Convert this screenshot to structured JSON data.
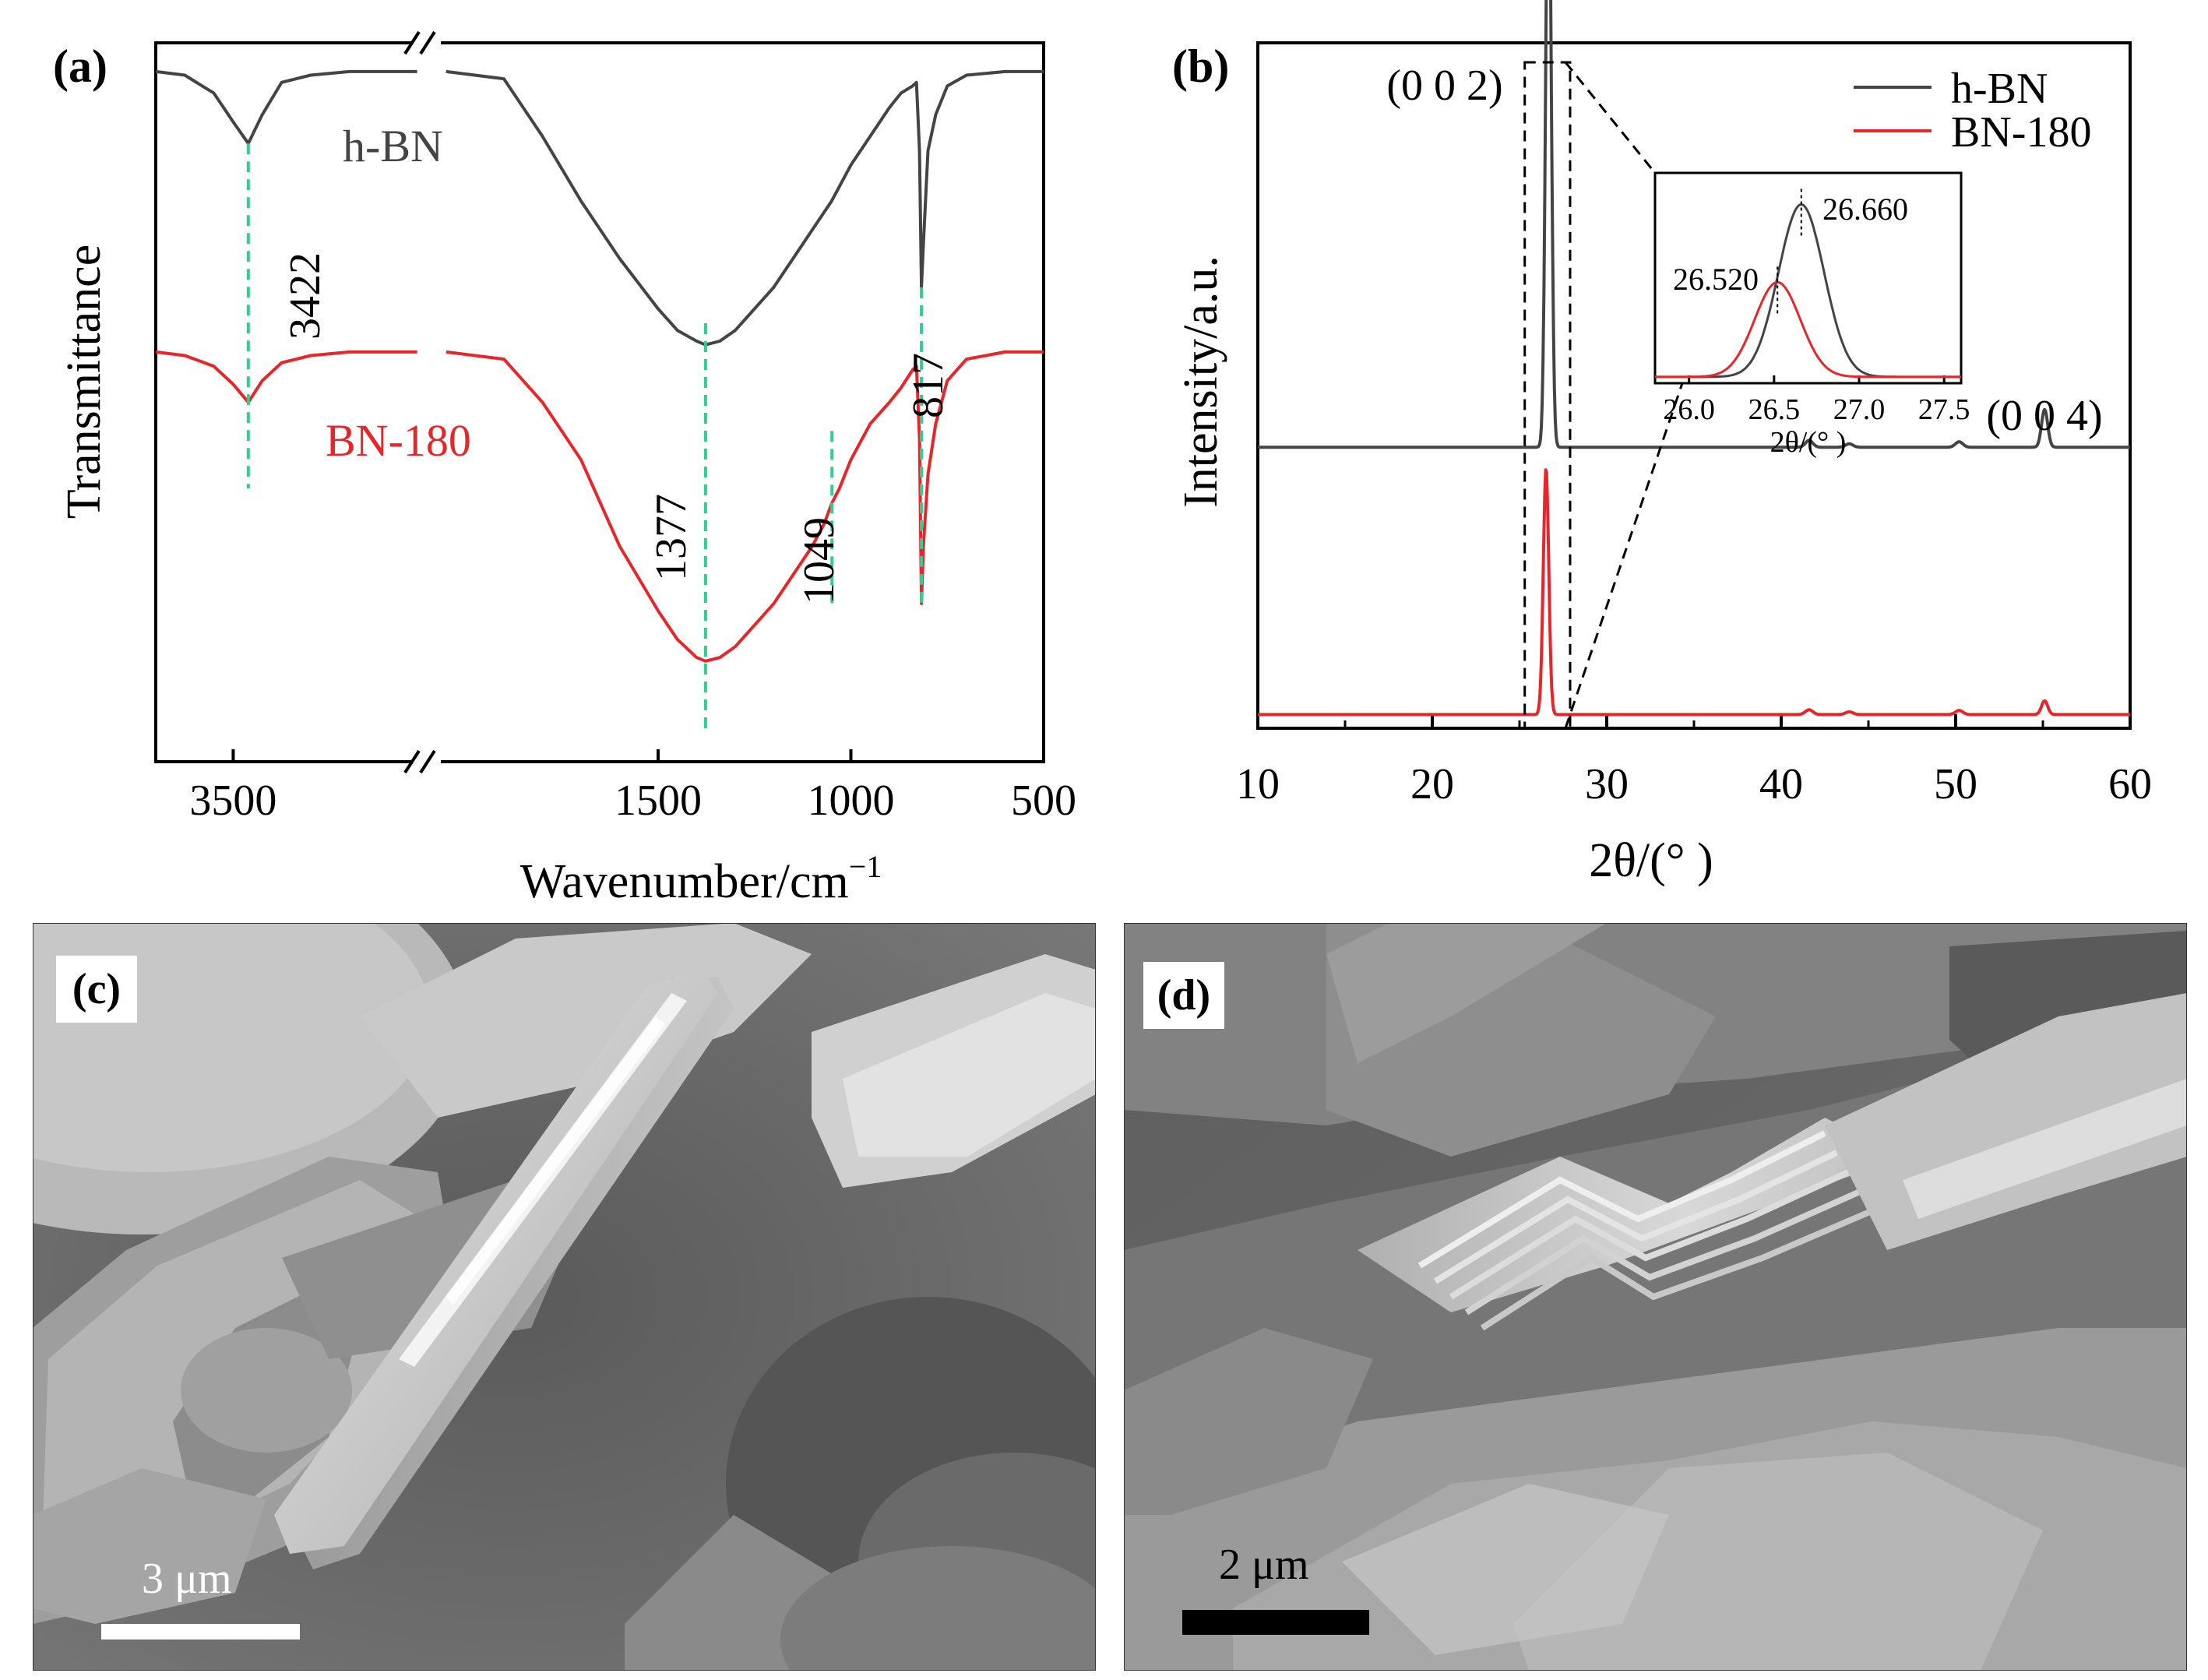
{
  "panels": {
    "a": {
      "label": "(a)",
      "xlabel": "Wavenumber/cm",
      "xlabel_sup": "−1",
      "ylabel": "Transmittance",
      "colors": {
        "h_bn": "#444444",
        "bn_180": "#e8262a",
        "guide": "#2ecf8f"
      }
    },
    "b": {
      "label": "(b)",
      "xlabel": "2θ/(°  )",
      "ylabel": "Intensity/a.u.",
      "peak_labels": [
        "(0 0 2)",
        "(0 0 4)"
      ],
      "inset": {
        "xlabel": "2θ/(°  )",
        "peak_labels": [
          "26.660",
          "26.520"
        ]
      },
      "colors": {
        "h_bn": "#444444",
        "bn_180": "#e8262a"
      }
    },
    "c": {
      "label": "(c)",
      "scale_label": "3 μm"
    },
    "d": {
      "label": "(d)",
      "scale_label": "2 μm"
    }
  },
  "chart_data": [
    {
      "panel": "a",
      "type": "line",
      "xlabel": "Wavenumber/cm−1",
      "ylabel": "Transmittance",
      "x_axis": {
        "reversed": true,
        "broken": true,
        "segments": [
          {
            "range": [
              3900,
              2500
            ],
            "ticks": [
              3500
            ]
          },
          {
            "range": [
              2100,
              500
            ],
            "ticks": [
              1500,
              1000,
              500
            ]
          }
        ]
      },
      "series": [
        {
          "name": "h-BN",
          "points": [
            [
              3900,
              0.96
            ],
            [
              3750,
              0.955
            ],
            [
              3600,
              0.93
            ],
            [
              3500,
              0.89
            ],
            [
              3422,
              0.86
            ],
            [
              3350,
              0.9
            ],
            [
              3250,
              0.945
            ],
            [
              3100,
              0.955
            ],
            [
              2900,
              0.96
            ],
            [
              2700,
              0.96
            ],
            [
              2550,
              0.96
            ],
            [
              2050,
              0.96
            ],
            [
              1900,
              0.95
            ],
            [
              1800,
              0.87
            ],
            [
              1700,
              0.78
            ],
            [
              1600,
              0.7
            ],
            [
              1500,
              0.63
            ],
            [
              1450,
              0.6
            ],
            [
              1400,
              0.585
            ],
            [
              1377,
              0.58
            ],
            [
              1340,
              0.585
            ],
            [
              1300,
              0.6
            ],
            [
              1250,
              0.63
            ],
            [
              1200,
              0.66
            ],
            [
              1150,
              0.7
            ],
            [
              1100,
              0.74
            ],
            [
              1050,
              0.78
            ],
            [
              1000,
              0.83
            ],
            [
              950,
              0.87
            ],
            [
              900,
              0.91
            ],
            [
              870,
              0.93
            ],
            [
              840,
              0.94
            ],
            [
              830,
              0.945
            ],
            [
              822,
              0.85
            ],
            [
              817,
              0.66
            ],
            [
              812,
              0.72
            ],
            [
              800,
              0.85
            ],
            [
              780,
              0.9
            ],
            [
              750,
              0.94
            ],
            [
              700,
              0.955
            ],
            [
              600,
              0.96
            ],
            [
              500,
              0.96
            ]
          ]
        },
        {
          "name": "BN-180",
          "points": [
            [
              3900,
              0.57
            ],
            [
              3750,
              0.565
            ],
            [
              3600,
              0.55
            ],
            [
              3500,
              0.525
            ],
            [
              3422,
              0.5
            ],
            [
              3350,
              0.53
            ],
            [
              3250,
              0.555
            ],
            [
              3100,
              0.565
            ],
            [
              2900,
              0.57
            ],
            [
              2700,
              0.57
            ],
            [
              2550,
              0.57
            ],
            [
              2050,
              0.57
            ],
            [
              1900,
              0.56
            ],
            [
              1800,
              0.5
            ],
            [
              1700,
              0.42
            ],
            [
              1600,
              0.3
            ],
            [
              1500,
              0.21
            ],
            [
              1450,
              0.17
            ],
            [
              1400,
              0.145
            ],
            [
              1377,
              0.14
            ],
            [
              1340,
              0.145
            ],
            [
              1300,
              0.16
            ],
            [
              1250,
              0.19
            ],
            [
              1200,
              0.22
            ],
            [
              1150,
              0.26
            ],
            [
              1100,
              0.3
            ],
            [
              1070,
              0.33
            ],
            [
              1049,
              0.36
            ],
            [
              1030,
              0.38
            ],
            [
              1000,
              0.42
            ],
            [
              950,
              0.47
            ],
            [
              900,
              0.5
            ],
            [
              870,
              0.52
            ],
            [
              840,
              0.545
            ],
            [
              830,
              0.55
            ],
            [
              822,
              0.45
            ],
            [
              817,
              0.22
            ],
            [
              812,
              0.3
            ],
            [
              800,
              0.4
            ],
            [
              780,
              0.47
            ],
            [
              750,
              0.53
            ],
            [
              700,
              0.56
            ],
            [
              600,
              0.57
            ],
            [
              500,
              0.57
            ]
          ]
        }
      ],
      "annotations": [
        {
          "x": 3422,
          "text": "3422"
        },
        {
          "x": 1377,
          "text": "1377"
        },
        {
          "x": 1049,
          "text": "1049"
        },
        {
          "x": 817,
          "text": "817"
        }
      ],
      "series_labels": [
        {
          "series": "h-BN",
          "text": "h-BN"
        },
        {
          "series": "BN-180",
          "text": "BN-180"
        }
      ]
    },
    {
      "panel": "b",
      "type": "line",
      "xlabel": "2θ/(°  )",
      "ylabel": "Intensity/a.u.",
      "xlim": [
        10,
        60
      ],
      "xticks": [
        10,
        20,
        30,
        40,
        50,
        60
      ],
      "legend": {
        "placement": "top-right",
        "entries": [
          "h-BN",
          "BN-180"
        ]
      },
      "series": [
        {
          "name": "h-BN",
          "baseline": 0.41,
          "peaks": [
            {
              "x": 26.66,
              "height": 0.93,
              "width": 0.22
            },
            {
              "x": 41.6,
              "height": 0.01,
              "width": 0.3
            },
            {
              "x": 43.9,
              "height": 0.005,
              "width": 0.3
            },
            {
              "x": 50.2,
              "height": 0.008,
              "width": 0.3
            },
            {
              "x": 55.1,
              "height": 0.055,
              "width": 0.25
            }
          ]
        },
        {
          "name": "BN-180",
          "baseline": 0.02,
          "peaks": [
            {
              "x": 26.52,
              "height": 0.36,
              "width": 0.22
            },
            {
              "x": 41.6,
              "height": 0.007,
              "width": 0.3
            },
            {
              "x": 43.9,
              "height": 0.004,
              "width": 0.3
            },
            {
              "x": 50.2,
              "height": 0.006,
              "width": 0.3
            },
            {
              "x": 55.1,
              "height": 0.02,
              "width": 0.25
            }
          ]
        }
      ],
      "annotations": [
        {
          "x": 26.6,
          "text": "(0 0 2)"
        },
        {
          "x": 55.1,
          "text": "(0 0 4)"
        }
      ],
      "highlight_box": {
        "xrange": [
          25.3,
          27.9
        ]
      }
    },
    {
      "panel": "b-inset",
      "type": "line",
      "xlabel": "2θ/(°  )",
      "xlim": [
        25.8,
        27.6
      ],
      "xticks": [
        26.0,
        26.5,
        27.0,
        27.5
      ],
      "series": [
        {
          "name": "h-BN",
          "peak_x": 26.66,
          "peak_y": 0.82,
          "width": 0.19
        },
        {
          "name": "BN-180",
          "peak_x": 26.52,
          "peak_y": 0.45,
          "width": 0.19
        }
      ],
      "annotations": [
        {
          "x": 26.66,
          "text": "26.660"
        },
        {
          "x": 26.52,
          "text": "26.520"
        }
      ]
    }
  ]
}
